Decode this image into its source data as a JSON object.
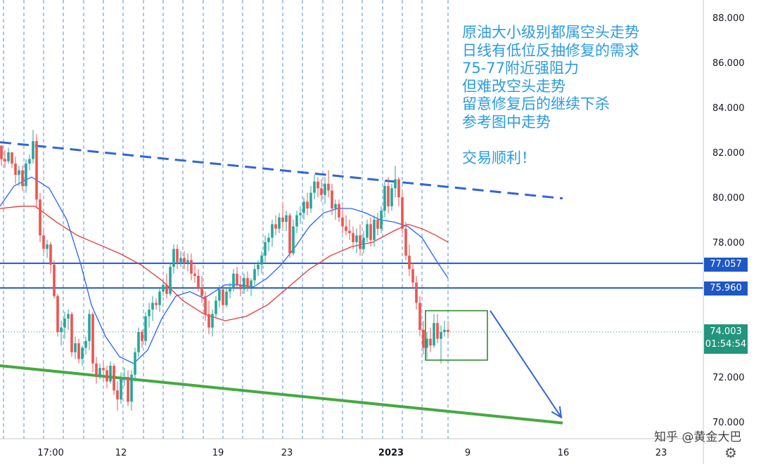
{
  "chart_data": {
    "type": "candlestick",
    "instrument": "Crude Oil",
    "timeframe": "1H",
    "ylim": [
      69.6,
      88.8
    ],
    "yticks": [
      "88.000",
      "86.000",
      "84.000",
      "82.000",
      "80.000",
      "78.000",
      "72.000",
      "70.000"
    ],
    "xticks": [
      "17:00",
      "12",
      "19",
      "23",
      "2023",
      "9",
      "16",
      "23"
    ],
    "price_levels": [
      {
        "label": "77.057",
        "value": 77.057,
        "color": "#1e58c4"
      },
      {
        "label": "75.960",
        "value": 75.96,
        "color": "#1e58c4"
      }
    ],
    "last_price": {
      "label": "74.003",
      "value": 74.003,
      "countdown": "01:54:54",
      "color": "#22957e"
    },
    "trendlines": [
      {
        "name": "upper-resistance-dashed",
        "color": "#2f66d6",
        "style": "dashed",
        "points": [
          [
            0,
            82.45
          ],
          [
            800,
            79.95
          ]
        ]
      },
      {
        "name": "lower-support",
        "color": "#45a93f",
        "style": "solid",
        "points": [
          [
            0,
            72.5
          ],
          [
            800,
            69.95
          ]
        ]
      }
    ],
    "box": {
      "from": 605,
      "to": 693,
      "high": 74.95,
      "low": 72.75,
      "color": "#2e8b2e"
    },
    "arrow": {
      "from": [
        697,
        74.95
      ],
      "to": [
        798,
        70.2
      ],
      "color": "#2f66d6"
    },
    "ma_fast": [
      [
        0,
        79.6
      ],
      [
        20,
        80.5
      ],
      [
        45,
        80.9
      ],
      [
        70,
        80.4
      ],
      [
        95,
        79.0
      ],
      [
        115,
        77.0
      ],
      [
        130,
        75.2
      ],
      [
        150,
        73.8
      ],
      [
        170,
        72.9
      ],
      [
        190,
        72.6
      ],
      [
        210,
        73.2
      ],
      [
        230,
        74.6
      ],
      [
        250,
        75.6
      ],
      [
        270,
        75.8
      ],
      [
        290,
        75.5
      ],
      [
        305,
        75.8
      ],
      [
        320,
        76.1
      ],
      [
        340,
        76.1
      ],
      [
        360,
        76.0
      ],
      [
        380,
        76.4
      ],
      [
        400,
        77.0
      ],
      [
        420,
        77.8
      ],
      [
        440,
        78.7
      ],
      [
        460,
        79.3
      ],
      [
        480,
        79.5
      ],
      [
        500,
        79.5
      ],
      [
        520,
        79.3
      ],
      [
        540,
        79.0
      ],
      [
        560,
        78.9
      ],
      [
        580,
        78.7
      ],
      [
        600,
        78.2
      ],
      [
        620,
        77.2
      ],
      [
        637,
        76.4
      ]
    ],
    "ma_slow": [
      [
        0,
        79.5
      ],
      [
        30,
        79.6
      ],
      [
        50,
        79.6
      ],
      [
        80,
        78.9
      ],
      [
        110,
        78.3
      ],
      [
        140,
        77.9
      ],
      [
        170,
        77.5
      ],
      [
        200,
        77.0
      ],
      [
        230,
        76.3
      ],
      [
        260,
        75.4
      ],
      [
        290,
        74.8
      ],
      [
        320,
        74.5
      ],
      [
        350,
        74.7
      ],
      [
        380,
        75.2
      ],
      [
        410,
        76.0
      ],
      [
        440,
        76.8
      ],
      [
        470,
        77.4
      ],
      [
        500,
        77.8
      ],
      [
        530,
        78.0
      ],
      [
        560,
        78.5
      ],
      [
        580,
        78.8
      ],
      [
        600,
        78.6
      ],
      [
        620,
        78.3
      ],
      [
        637,
        78.0
      ]
    ],
    "candles": [
      [
        2,
        82.3,
        82.3,
        81.4,
        81.7
      ],
      [
        7,
        81.7,
        82.1,
        81.3,
        81.6
      ],
      [
        12,
        81.6,
        82.2,
        81.5,
        82.0
      ],
      [
        17,
        82.0,
        82.0,
        81.3,
        81.5
      ],
      [
        22,
        81.5,
        81.8,
        80.6,
        81.0
      ],
      [
        27,
        81.0,
        81.4,
        80.5,
        81.2
      ],
      [
        32,
        81.2,
        81.4,
        80.3,
        80.5
      ],
      [
        37,
        80.5,
        81.7,
        80.2,
        81.5
      ],
      [
        42,
        81.5,
        81.9,
        81.2,
        81.7
      ],
      [
        47,
        81.7,
        83.0,
        81.5,
        82.5
      ],
      [
        52,
        82.5,
        82.8,
        79.5,
        79.9
      ],
      [
        57,
        79.9,
        80.2,
        78.0,
        78.3
      ],
      [
        62,
        78.3,
        78.5,
        77.5,
        77.7
      ],
      [
        67,
        77.7,
        78.1,
        77.3,
        77.9
      ],
      [
        72,
        77.9,
        78.0,
        76.6,
        77.0
      ],
      [
        77,
        77.0,
        77.2,
        75.5,
        75.6
      ],
      [
        82,
        75.6,
        75.7,
        73.8,
        74.0
      ],
      [
        87,
        74.0,
        74.5,
        73.4,
        74.2
      ],
      [
        92,
        74.2,
        74.9,
        73.7,
        74.6
      ],
      [
        97,
        74.6,
        75.0,
        74.1,
        74.8
      ],
      [
        102,
        74.8,
        74.9,
        72.9,
        73.1
      ],
      [
        107,
        73.1,
        73.8,
        72.8,
        73.5
      ],
      [
        112,
        73.5,
        73.7,
        72.6,
        72.8
      ],
      [
        117,
        72.8,
        73.4,
        72.5,
        73.3
      ],
      [
        122,
        73.3,
        73.8,
        73.0,
        73.6
      ],
      [
        127,
        73.6,
        75.0,
        73.2,
        74.8
      ],
      [
        132,
        74.8,
        74.9,
        72.2,
        72.6
      ],
      [
        137,
        72.6,
        72.9,
        71.7,
        72.0
      ],
      [
        142,
        72.0,
        72.6,
        71.9,
        72.4
      ],
      [
        147,
        72.4,
        72.7,
        71.9,
        72.3
      ],
      [
        152,
        72.3,
        72.5,
        71.5,
        71.8
      ],
      [
        157,
        71.8,
        72.7,
        71.7,
        72.5
      ],
      [
        162,
        72.5,
        72.6,
        71.2,
        71.4
      ],
      [
        167,
        71.4,
        71.8,
        70.5,
        71.0
      ],
      [
        172,
        71.0,
        72.2,
        70.8,
        71.9
      ],
      [
        177,
        71.9,
        72.4,
        71.6,
        72.0
      ],
      [
        182,
        72.0,
        72.3,
        70.7,
        70.9
      ],
      [
        187,
        70.9,
        72.3,
        70.5,
        72.1
      ],
      [
        192,
        72.1,
        73.3,
        71.8,
        73.1
      ],
      [
        197,
        73.1,
        74.2,
        72.9,
        74.0
      ],
      [
        202,
        74.0,
        74.1,
        73.3,
        73.6
      ],
      [
        207,
        73.6,
        74.9,
        73.4,
        74.7
      ],
      [
        212,
        74.7,
        75.3,
        74.2,
        75.0
      ],
      [
        217,
        75.0,
        75.6,
        74.5,
        75.3
      ],
      [
        222,
        75.3,
        75.5,
        75.0,
        75.2
      ],
      [
        227,
        75.2,
        76.0,
        74.9,
        75.8
      ],
      [
        232,
        75.8,
        76.3,
        75.6,
        76.1
      ],
      [
        237,
        76.1,
        76.6,
        75.5,
        75.7
      ],
      [
        242,
        75.7,
        77.1,
        75.6,
        76.9
      ],
      [
        247,
        76.9,
        77.9,
        76.6,
        77.7
      ],
      [
        252,
        77.7,
        77.9,
        76.8,
        77.1
      ],
      [
        257,
        77.1,
        77.6,
        76.9,
        77.3
      ],
      [
        262,
        77.3,
        77.6,
        76.8,
        77.1
      ],
      [
        267,
        77.1,
        77.5,
        76.7,
        77.2
      ],
      [
        272,
        77.2,
        77.5,
        76.3,
        76.6
      ],
      [
        277,
        76.6,
        77.0,
        76.2,
        76.5
      ],
      [
        282,
        76.5,
        76.8,
        75.8,
        76.0
      ],
      [
        287,
        76.0,
        76.5,
        75.3,
        75.6
      ],
      [
        292,
        75.6,
        75.8,
        74.5,
        74.8
      ],
      [
        297,
        74.8,
        75.4,
        73.9,
        74.2
      ],
      [
        302,
        74.2,
        75.0,
        73.8,
        74.8
      ],
      [
        307,
        74.8,
        75.6,
        74.6,
        75.4
      ],
      [
        312,
        75.4,
        76.1,
        75.1,
        75.9
      ],
      [
        317,
        75.9,
        76.0,
        75.0,
        75.2
      ],
      [
        322,
        75.2,
        76.0,
        75.1,
        75.8
      ],
      [
        327,
        75.8,
        76.2,
        75.5,
        76.0
      ],
      [
        332,
        76.0,
        76.8,
        75.8,
        76.6
      ],
      [
        337,
        76.6,
        76.9,
        75.9,
        76.1
      ],
      [
        342,
        76.1,
        76.5,
        75.6,
        75.9
      ],
      [
        347,
        75.9,
        76.6,
        75.7,
        76.4
      ],
      [
        352,
        76.4,
        76.7,
        75.8,
        76.0
      ],
      [
        357,
        76.0,
        76.4,
        75.6,
        76.3
      ],
      [
        362,
        76.3,
        77.0,
        76.1,
        76.8
      ],
      [
        367,
        76.8,
        77.2,
        76.5,
        77.0
      ],
      [
        372,
        77.0,
        77.6,
        76.6,
        77.4
      ],
      [
        377,
        77.4,
        78.3,
        77.1,
        78.0
      ],
      [
        382,
        78.0,
        78.4,
        77.6,
        78.2
      ],
      [
        387,
        78.2,
        79.0,
        77.8,
        78.8
      ],
      [
        392,
        78.8,
        79.2,
        78.3,
        78.6
      ],
      [
        397,
        78.6,
        79.3,
        78.4,
        79.1
      ],
      [
        402,
        79.1,
        79.8,
        78.6,
        78.9
      ],
      [
        407,
        78.9,
        79.4,
        78.5,
        79.2
      ],
      [
        412,
        79.2,
        79.3,
        77.3,
        77.5
      ],
      [
        417,
        77.5,
        79.0,
        77.4,
        78.7
      ],
      [
        422,
        78.7,
        79.4,
        78.4,
        79.2
      ],
      [
        427,
        79.2,
        79.6,
        78.8,
        79.3
      ],
      [
        432,
        79.3,
        80.0,
        79.0,
        79.8
      ],
      [
        437,
        79.8,
        80.2,
        79.2,
        79.5
      ],
      [
        442,
        79.5,
        80.5,
        79.3,
        80.2
      ],
      [
        447,
        80.2,
        81.0,
        79.9,
        80.7
      ],
      [
        452,
        80.7,
        80.9,
        80.0,
        80.4
      ],
      [
        457,
        80.4,
        80.8,
        79.8,
        80.1
      ],
      [
        462,
        80.1,
        80.9,
        79.7,
        80.6
      ],
      [
        467,
        80.6,
        81.2,
        80.0,
        80.3
      ],
      [
        472,
        80.3,
        80.6,
        79.2,
        79.5
      ],
      [
        477,
        79.5,
        79.9,
        79.0,
        79.7
      ],
      [
        482,
        79.7,
        79.9,
        78.9,
        79.1
      ],
      [
        487,
        79.1,
        79.6,
        78.4,
        78.7
      ],
      [
        492,
        78.7,
        79.2,
        78.3,
        78.5
      ],
      [
        497,
        78.5,
        79.0,
        78.1,
        78.4
      ],
      [
        502,
        78.4,
        78.7,
        77.7,
        78.0
      ],
      [
        507,
        78.0,
        78.6,
        77.5,
        78.3
      ],
      [
        512,
        78.3,
        78.8,
        77.4,
        77.7
      ],
      [
        517,
        77.7,
        78.5,
        77.5,
        78.2
      ],
      [
        522,
        78.2,
        79.0,
        78.0,
        78.8
      ],
      [
        527,
        78.8,
        79.1,
        77.8,
        78.1
      ],
      [
        532,
        78.1,
        79.2,
        77.8,
        79.0
      ],
      [
        537,
        79.0,
        79.3,
        78.3,
        78.6
      ],
      [
        542,
        78.6,
        79.6,
        78.4,
        79.4
      ],
      [
        547,
        79.4,
        80.7,
        79.1,
        80.5
      ],
      [
        552,
        80.5,
        80.9,
        79.3,
        79.6
      ],
      [
        557,
        79.6,
        80.6,
        79.4,
        80.4
      ],
      [
        562,
        80.4,
        81.4,
        80.0,
        80.8
      ],
      [
        567,
        80.8,
        80.9,
        79.6,
        80.0
      ],
      [
        572,
        80.0,
        80.3,
        78.4,
        78.6
      ],
      [
        577,
        78.6,
        78.9,
        77.2,
        77.4
      ],
      [
        582,
        77.4,
        77.9,
        76.5,
        76.8
      ],
      [
        587,
        76.8,
        77.1,
        76.0,
        76.2
      ],
      [
        592,
        76.2,
        76.5,
        75.0,
        75.3
      ],
      [
        597,
        75.3,
        75.6,
        73.8,
        74.1
      ],
      [
        602,
        74.1,
        74.5,
        73.0,
        73.3
      ],
      [
        607,
        73.3,
        74.0,
        72.8,
        73.7
      ],
      [
        612,
        73.7,
        74.2,
        73.1,
        73.4
      ],
      [
        617,
        73.4,
        74.8,
        73.3,
        74.4
      ],
      [
        622,
        74.4,
        74.8,
        73.5,
        73.7
      ],
      [
        627,
        73.7,
        74.3,
        72.6,
        74.0
      ],
      [
        632,
        74.0,
        74.5,
        73.8,
        74.1
      ],
      [
        637,
        74.1,
        74.5,
        73.8,
        74.0
      ]
    ]
  },
  "annotation_lines": [
    "原油大小级别都属空头走势",
    "日线有低位反抽修复的需求",
    "75-77附近强阻力",
    "但难改空头走势",
    "留意修复后的继续下杀",
    "参考图中走势",
    "",
    "交易顺利！"
  ],
  "watermark": "知乎 @黄金大巴",
  "settings_icon": "gear-icon",
  "colors": {
    "bull": "#26a69a",
    "bear": "#ef5350",
    "ma_fast": "#2962ff",
    "ma_slow": "#e53935",
    "grid": "#3b7bd6"
  }
}
